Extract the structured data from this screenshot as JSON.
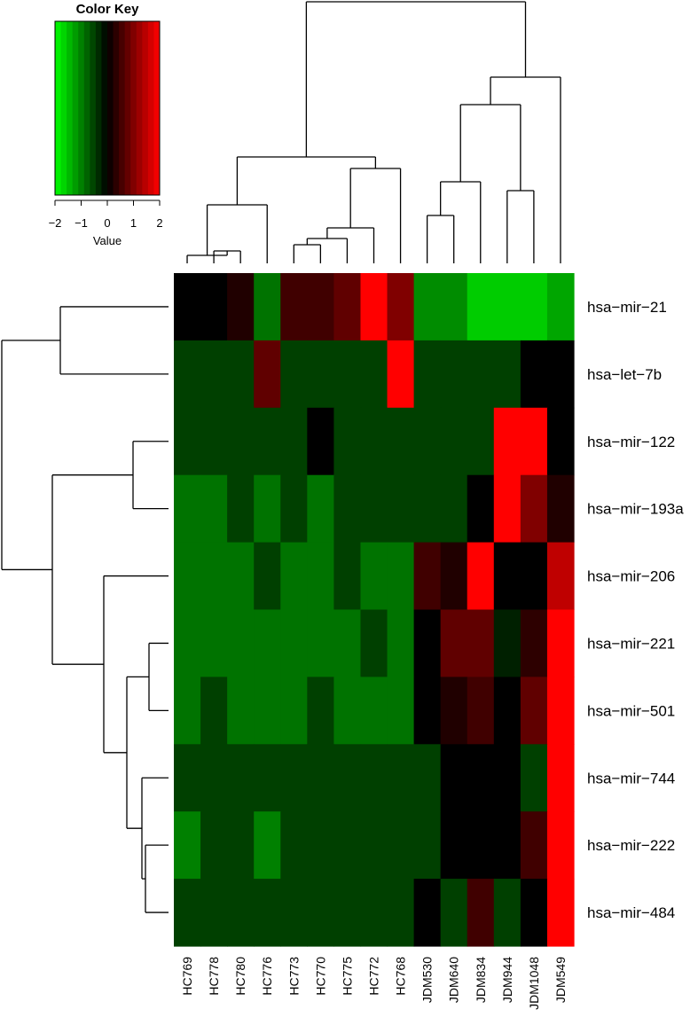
{
  "chart_data": {
    "type": "heatmap",
    "title": "",
    "color_key": {
      "title": "Color Key",
      "xlabel": "Value",
      "range": [
        -2,
        2
      ],
      "ticks": [
        -2,
        -1,
        0,
        1,
        2
      ],
      "tick_labels": [
        "−2",
        "−1",
        "0",
        "1",
        "2"
      ],
      "low_color": "#00ff00",
      "mid_color": "#000000",
      "high_color": "#ff0000",
      "bins": 18
    },
    "columns": [
      "HC769",
      "HC778",
      "HC780",
      "HC776",
      "HC773",
      "HC770",
      "HC775",
      "HC772",
      "HC768",
      "JDM530",
      "JDM640",
      "JDM834",
      "JDM944",
      "JDM1048",
      "JDM549"
    ],
    "rows": [
      "hsa-mir-21",
      "hsa-let-7b",
      "hsa-mir-122",
      "hsa-mir-193a",
      "hsa-mir-206",
      "hsa-mir-221",
      "hsa-mir-501",
      "hsa-mir-744",
      "hsa-mir-222",
      "hsa-mir-484"
    ],
    "row_labels_display": [
      "hsa−mir−21",
      "hsa−let−7b",
      "hsa−mir−122",
      "hsa−mir−193a",
      "hsa−mir−206",
      "hsa−mir−221",
      "hsa−mir−501",
      "hsa−mir−744",
      "hsa−mir−222",
      "hsa−mir−484"
    ],
    "values": [
      [
        0.0,
        0.0,
        0.25,
        -0.9,
        0.5,
        0.5,
        0.75,
        2.0,
        1.0,
        -1.1,
        -1.1,
        -1.6,
        -1.6,
        -1.6,
        -1.3
      ],
      [
        -0.5,
        -0.5,
        -0.5,
        0.75,
        -0.5,
        -0.5,
        -0.5,
        -0.5,
        2.0,
        -0.5,
        -0.5,
        -0.5,
        -0.5,
        0.0,
        0.0
      ],
      [
        -0.5,
        -0.5,
        -0.5,
        -0.5,
        -0.5,
        0.0,
        -0.5,
        -0.5,
        -0.5,
        -0.5,
        -0.5,
        -0.5,
        2.0,
        2.0,
        0.0
      ],
      [
        -0.9,
        -0.9,
        -0.5,
        -0.9,
        -0.5,
        -0.9,
        -0.5,
        -0.5,
        -0.5,
        -0.5,
        -0.5,
        0.0,
        2.0,
        1.0,
        0.25
      ],
      [
        -0.9,
        -0.9,
        -0.9,
        -0.5,
        -0.9,
        -0.9,
        -0.5,
        -0.9,
        -0.9,
        0.5,
        0.25,
        2.0,
        0.0,
        0.0,
        1.5
      ],
      [
        -0.9,
        -0.9,
        -0.9,
        -0.9,
        -0.9,
        -0.9,
        -0.9,
        -0.5,
        -0.9,
        0.0,
        0.75,
        0.75,
        -0.25,
        0.35,
        2.0
      ],
      [
        -0.9,
        -0.5,
        -0.9,
        -0.9,
        -0.9,
        -0.5,
        -0.9,
        -0.9,
        -0.9,
        0.0,
        0.25,
        0.5,
        0.0,
        0.75,
        2.0
      ],
      [
        -0.5,
        -0.5,
        -0.5,
        -0.5,
        -0.5,
        -0.5,
        -0.5,
        -0.5,
        -0.5,
        -0.5,
        0.0,
        0.0,
        0.0,
        -0.5,
        2.0
      ],
      [
        -1.0,
        -0.5,
        -0.5,
        -1.0,
        -0.5,
        -0.5,
        -0.5,
        -0.5,
        -0.5,
        -0.5,
        0.0,
        0.0,
        0.0,
        0.5,
        2.0
      ],
      [
        -0.5,
        -0.5,
        -0.5,
        -0.5,
        -0.5,
        -0.5,
        -0.5,
        -0.5,
        -0.5,
        0.0,
        -0.5,
        0.5,
        -0.5,
        0.0,
        2.0
      ]
    ],
    "column_order_matches_dendrogram": true,
    "row_order_matches_dendrogram": true
  }
}
